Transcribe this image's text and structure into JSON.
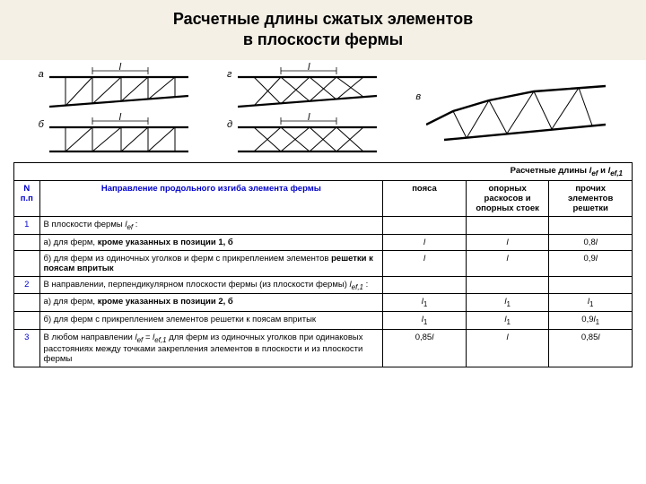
{
  "title": {
    "line1": "Расчетные длины сжатых элементов",
    "line2": "в плоскости фермы"
  },
  "diagrams": {
    "labels": {
      "a": "а",
      "b": "б",
      "v": "в",
      "g": "г",
      "d": "д"
    },
    "dim_symbol": "l",
    "stroke": "#000000",
    "stroke_thin": 1,
    "stroke_thick": 2.2
  },
  "side_label": "",
  "table": {
    "super_header_html": "Расчетные длины <span class='i'>l<sub class='sub'>ef</sub></span> и <span class='i'>l<sub class='sub'>ef,1</sub></span>",
    "headers": {
      "num": "N п.п",
      "dir": "Направление продольного изгиба элемента фермы",
      "col1": "пояса",
      "col2": "опорных раскосов и опорных стоек",
      "col3": "прочих элементов решетки"
    },
    "rows": [
      {
        "num": "1",
        "text_html": "В плоскости фермы <span class='i'>l<sub class='sub'>ef</sub></span> :",
        "c1": "",
        "c2": "",
        "c3": ""
      },
      {
        "num": "",
        "text_html": "а) для ферм, <b>кроме указанных в позиции 1, б</b>",
        "c1": "<span class='i'>l</span>",
        "c2": "<span class='i'>l</span>",
        "c3": "0,8<span class='i'>l</span>"
      },
      {
        "num": "",
        "text_html": "б) для ферм из одиночных уголков и ферм с прикреплением элементов <b>решетки к поясам впритык</b>",
        "c1": "<span class='i'>l</span>",
        "c2": "<span class='i'>l</span>",
        "c3": "0,9<span class='i'>l</span>"
      },
      {
        "num": "2",
        "text_html": "В направлении, перпендикулярном плоскости фермы (из плоскости фермы) <span class='i'>l<sub class='sub'>ef,1</sub></span> :",
        "c1": "",
        "c2": "",
        "c3": ""
      },
      {
        "num": "",
        "text_html": "а) для ферм, <b>кроме указанных в позиции 2, б</b>",
        "c1": "<span class='i'>l</span><sub class='sub'>1</sub>",
        "c2": "<span class='i'>l</span><sub class='sub'>1</sub>",
        "c3": "<span class='i'>l</span><sub class='sub'>1</sub>"
      },
      {
        "num": "",
        "text_html": "б) для ферм с прикреплением элементов решетки к поясам впритык",
        "c1": "<span class='i'>l</span><sub class='sub'>1</sub>",
        "c2": "<span class='i'>l</span><sub class='sub'>1</sub>",
        "c3": "0,9<span class='i'>l</span><sub class='sub'>1</sub>"
      },
      {
        "num": "3",
        "text_html": "В любом направлении <span class='i'>l<sub class='sub'>ef</sub> = l<sub class='sub'>ef,1</sub></span> для ферм из одиночных уголков при одинаковых расстояниях между точками закрепления элементов в плоскости и из плоскости фермы",
        "c1": "0,85<span class='i'>l</span>",
        "c2": "<span class='i'>l</span>",
        "c3": "0,85<span class='i'>l</span>"
      }
    ]
  }
}
